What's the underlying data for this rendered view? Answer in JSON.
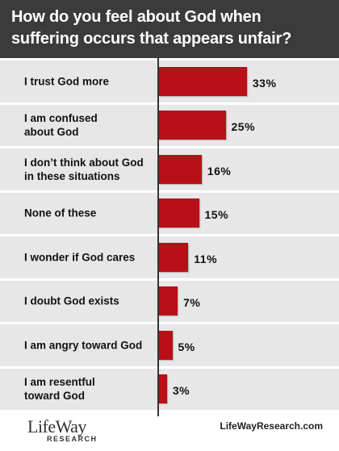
{
  "chart_data": {
    "type": "bar",
    "orientation": "horizontal",
    "title": "How do you feel about God when\nsuffering occurs that appears unfair?",
    "categories": [
      "I trust God more",
      "I am confused\nabout God",
      "I don’t think about God\nin these situations",
      "None of these",
      "I wonder if God cares",
      "I doubt God exists",
      "I am angry toward God",
      "I am resentful\ntoward God"
    ],
    "values": [
      33,
      25,
      16,
      15,
      11,
      7,
      5,
      3
    ],
    "value_labels": [
      "33%",
      "25%",
      "16%",
      "15%",
      "11%",
      "7%",
      "5%",
      "3%"
    ],
    "color": "#b81016",
    "xlim": [
      0,
      60
    ]
  },
  "logo": {
    "name": "LifeWay",
    "subtitle": "RESEARCH"
  },
  "source": "LifeWayResearch.com"
}
